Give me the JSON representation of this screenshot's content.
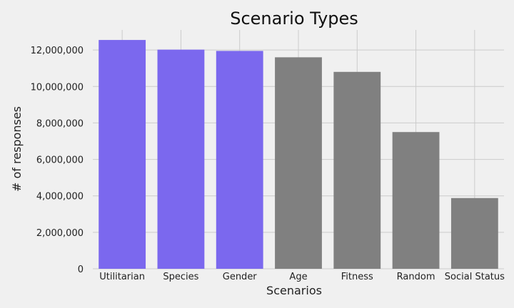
{
  "chart_data": {
    "type": "bar",
    "title": "Scenario Types",
    "xlabel": "Scenarios",
    "ylabel": "# of responses",
    "categories": [
      "Utilitarian",
      "Species",
      "Gender",
      "Age",
      "Fitness",
      "Random",
      "Social Status"
    ],
    "values": [
      12550000,
      12020000,
      11950000,
      11600000,
      10800000,
      7500000,
      3880000
    ],
    "highlighted": [
      true,
      true,
      true,
      false,
      false,
      false,
      false
    ],
    "colors": {
      "highlight": "#7b68ee",
      "default": "#808080",
      "grid": "#cbcbcb",
      "background": "#f0f0f0"
    },
    "ylim": [
      0,
      13100000
    ],
    "yticks": [
      0,
      2000000,
      4000000,
      6000000,
      8000000,
      10000000,
      12000000
    ],
    "ytick_labels": [
      "0",
      "2,000,000",
      "4,000,000",
      "6,000,000",
      "8,000,000",
      "10,000,000",
      "12,000,000"
    ],
    "grid": true
  }
}
